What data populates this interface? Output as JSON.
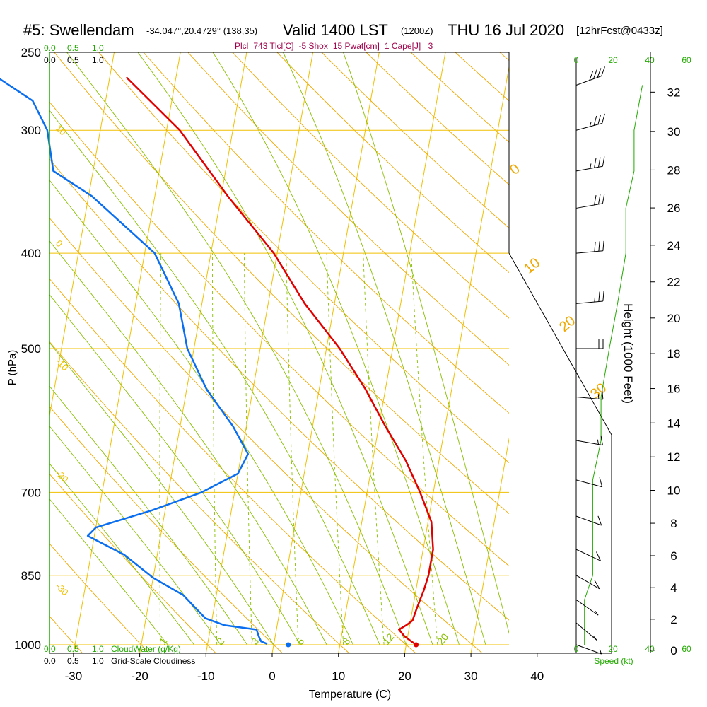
{
  "header": {
    "station": "#5: Swellendam",
    "coords": "-34.047°,20.4729° (138,35)",
    "valid": "Valid 1400 LST",
    "zulu": "(1200Z)",
    "date": "THU 16 Jul 2020",
    "forecast": "[12hrFcst@0433z]",
    "params": "Plcl=743 Tlcl[C]=-5 Shox=15 Pwat[cm]=1 Cape[J]= 3"
  },
  "scales": {
    "cloudwater_top": [
      "0.0",
      "0.5",
      "1.0"
    ],
    "cloudiness_top": [
      "0.0",
      "0.5",
      "1.0"
    ],
    "cloudwater_bottom": [
      "0.0",
      "0.5",
      "1.0"
    ],
    "cloudwater_bottom_label": "CloudWater (g/Kg)",
    "cloudiness_bottom": [
      "0.0",
      "0.5",
      "1.0"
    ],
    "cloudiness_bottom_label": "Grid-Scale Cloudiness",
    "speed_ticks": [
      "0",
      "20",
      "40",
      "60"
    ],
    "speed_label": "Speed (kt)"
  },
  "colors": {
    "temperature": "#e00000",
    "dewpoint": "#0a6ef0",
    "isobar": "#f0c000",
    "dry_adiabat": "#f0a800",
    "moist_adiabat": "#88c000",
    "mixing_ratio": "#88c000",
    "cloud_scale": "#22aa00",
    "params": "#a0004a"
  },
  "chart_data": {
    "type": "line",
    "title": "#5: Swellendam -34.047°,20.4729° (138,35) Valid 1400 LST (1200Z) THU 16 Jul 2020 [12hrFcst@0433z]",
    "xlabel": "Temperature (C)",
    "ylabel": "P (hPa)",
    "y2label": "Height (1000 Feet)",
    "xlim": [
      -33,
      45
    ],
    "xticks": [
      "-30",
      "-20",
      "-10",
      "0",
      "10",
      "20",
      "30",
      "40"
    ],
    "yticks": [
      "250",
      "300",
      "400",
      "500",
      "700",
      "850",
      "1000"
    ],
    "y_scale": "log",
    "ylim": [
      1020,
      250
    ],
    "height_ticks": [
      "0",
      "2",
      "4",
      "6",
      "8",
      "10",
      "12",
      "14",
      "16",
      "18",
      "20",
      "22",
      "24",
      "26",
      "28",
      "30",
      "32"
    ],
    "isotherm_labels": [
      "10",
      "0",
      "-10",
      "-20",
      "-30"
    ],
    "dry_adiabat_labels": [
      "0",
      "10",
      "20",
      "30"
    ],
    "mixing_ratio_labels": [
      "1",
      "2",
      "3",
      "5",
      "8",
      "12",
      "20"
    ],
    "series": [
      {
        "name": "Temperature",
        "points": [
          [
            21.5,
            1000
          ],
          [
            20.5,
            990
          ],
          [
            19.5,
            980
          ],
          [
            18.5,
            965
          ],
          [
            19.5,
            955
          ],
          [
            20.3,
            945
          ],
          [
            20.6,
            920
          ],
          [
            21.2,
            880
          ],
          [
            21.5,
            850
          ],
          [
            21.5,
            800
          ],
          [
            20.5,
            750
          ],
          [
            18.0,
            700
          ],
          [
            15.0,
            650
          ],
          [
            11.0,
            600
          ],
          [
            7.0,
            550
          ],
          [
            2.0,
            500
          ],
          [
            -4.5,
            450
          ],
          [
            -10.5,
            400
          ],
          [
            -19.0,
            350
          ],
          [
            -28.0,
            300
          ],
          [
            -37.5,
            265
          ]
        ]
      },
      {
        "name": "Dewpoint",
        "points": [
          [
            -1.0,
            998
          ],
          [
            -2.0,
            992
          ],
          [
            -2.5,
            980
          ],
          [
            -3.0,
            965
          ],
          [
            -8.0,
            955
          ],
          [
            -11.0,
            940
          ],
          [
            -13.0,
            915
          ],
          [
            -15.0,
            890
          ],
          [
            -20.0,
            855
          ],
          [
            -25.0,
            810
          ],
          [
            -31.0,
            775
          ],
          [
            -30.0,
            760
          ],
          [
            -22.0,
            730
          ],
          [
            -15.0,
            700
          ],
          [
            -10.0,
            670
          ],
          [
            -9.0,
            640
          ],
          [
            -12.0,
            600
          ],
          [
            -17.0,
            550
          ],
          [
            -21.0,
            500
          ],
          [
            -23.5,
            450
          ],
          [
            -28.5,
            400
          ],
          [
            -39.5,
            350
          ],
          [
            -46.0,
            330
          ],
          [
            -48.0,
            300
          ],
          [
            -51.0,
            280
          ],
          [
            -57.0,
            265
          ]
        ]
      }
    ],
    "surface_parcel": {
      "temperature": 21.5,
      "dewpoint": 2.2,
      "pressure": 1000
    },
    "winds": [
      {
        "pressure": 270,
        "dir": 290,
        "kt": 40
      },
      {
        "pressure": 300,
        "dir": 285,
        "kt": 35
      },
      {
        "pressure": 330,
        "dir": 280,
        "kt": 35
      },
      {
        "pressure": 360,
        "dir": 280,
        "kt": 30
      },
      {
        "pressure": 400,
        "dir": 275,
        "kt": 30
      },
      {
        "pressure": 450,
        "dir": 275,
        "kt": 25
      },
      {
        "pressure": 500,
        "dir": 270,
        "kt": 20
      },
      {
        "pressure": 560,
        "dir": 265,
        "kt": 15
      },
      {
        "pressure": 620,
        "dir": 260,
        "kt": 15
      },
      {
        "pressure": 680,
        "dir": 255,
        "kt": 10
      },
      {
        "pressure": 740,
        "dir": 250,
        "kt": 10
      },
      {
        "pressure": 800,
        "dir": 245,
        "kt": 10
      },
      {
        "pressure": 850,
        "dir": 240,
        "kt": 10
      },
      {
        "pressure": 900,
        "dir": 235,
        "kt": 5
      },
      {
        "pressure": 950,
        "dir": 230,
        "kt": 5
      },
      {
        "pressure": 1000,
        "dir": 250,
        "kt": 5
      }
    ]
  }
}
